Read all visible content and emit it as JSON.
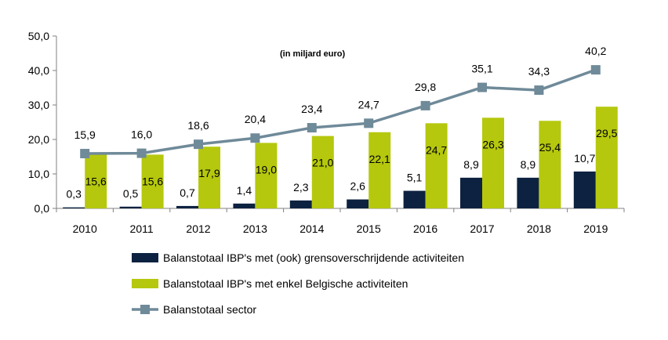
{
  "chart_data": {
    "type": "bar",
    "annotation": "(in miljard euro)",
    "categories": [
      "2010",
      "2011",
      "2012",
      "2013",
      "2014",
      "2015",
      "2016",
      "2017",
      "2018",
      "2019"
    ],
    "ylim": [
      0,
      50
    ],
    "yticks": [
      0,
      10,
      20,
      30,
      40,
      50
    ],
    "ytick_labels": [
      "0,0",
      "10,0",
      "20,0",
      "30,0",
      "40,0",
      "50,0"
    ],
    "grid": false,
    "legend_position": "bottom",
    "series": [
      {
        "name": "Balanstotaal IBP's met (ook) grensoverschrijdende activiteiten",
        "kind": "bar",
        "color": "#0d2240",
        "values": [
          0.3,
          0.5,
          0.7,
          1.4,
          2.3,
          2.6,
          5.1,
          8.9,
          8.9,
          10.7
        ],
        "labels": [
          "0,3",
          "0,5",
          "0,7",
          "1,4",
          "2,3",
          "2,6",
          "5,1",
          "8,9",
          "8,9",
          "10,7"
        ]
      },
      {
        "name": "Balanstotaal IBP's met enkel Belgische activiteiten",
        "kind": "bar",
        "color": "#b5c80e",
        "values": [
          15.6,
          15.6,
          17.9,
          19.0,
          21.0,
          22.1,
          24.7,
          26.3,
          25.4,
          29.5
        ],
        "labels": [
          "15,6",
          "15,6",
          "17,9",
          "19,0",
          "21,0",
          "22,1",
          "24,7",
          "26,3",
          "25,4",
          "29,5"
        ]
      },
      {
        "name": "Balanstotaal sector",
        "kind": "line",
        "color": "#6f8a99",
        "values": [
          15.9,
          16.0,
          18.6,
          20.4,
          23.4,
          24.7,
          29.8,
          35.1,
          34.3,
          40.2
        ],
        "labels": [
          "15,9",
          "16,0",
          "18,6",
          "20,4",
          "23,4",
          "24,7",
          "29,8",
          "35,1",
          "34,3",
          "40,2"
        ]
      }
    ]
  }
}
